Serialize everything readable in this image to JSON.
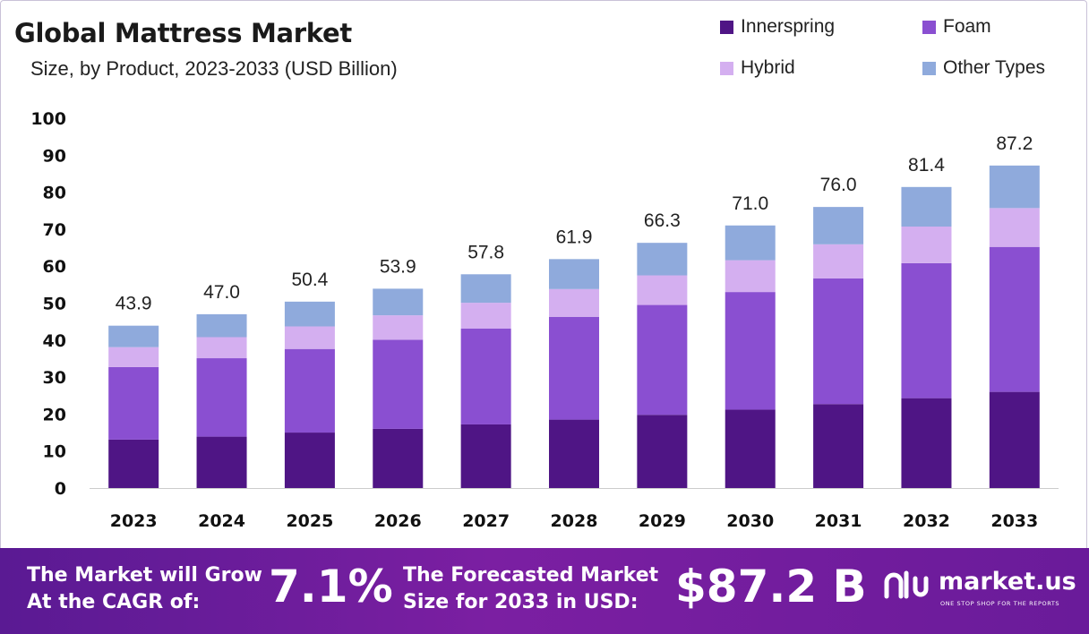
{
  "title": "Global Mattress Market",
  "subtitle": "Size, by Product, 2023-2033 (USD Billion)",
  "colors": {
    "innerspring": "#4f1585",
    "foam": "#8a4fd1",
    "hybrid": "#d4aff0",
    "other": "#8faadc",
    "footer_start": "#5a1a93",
    "footer_end": "#7b1fa2"
  },
  "legend": [
    {
      "label": "Innerspring",
      "color": "#4f1585"
    },
    {
      "label": "Foam",
      "color": "#8a4fd1"
    },
    {
      "label": "Hybrid",
      "color": "#d4aff0"
    },
    {
      "label": "Other Types",
      "color": "#8faadc"
    }
  ],
  "chart_data": {
    "type": "bar",
    "stacked": true,
    "categories": [
      "2023",
      "2024",
      "2025",
      "2026",
      "2027",
      "2028",
      "2029",
      "2030",
      "2031",
      "2032",
      "2033"
    ],
    "series": [
      {
        "name": "Innerspring",
        "values": [
          13.1,
          13.9,
          15.0,
          16.0,
          17.2,
          18.5,
          19.8,
          21.2,
          22.7,
          24.3,
          26.0
        ]
      },
      {
        "name": "Foam",
        "values": [
          19.6,
          21.2,
          22.6,
          24.1,
          25.9,
          27.8,
          29.7,
          31.8,
          34.0,
          36.5,
          39.2
        ]
      },
      {
        "name": "Hybrid",
        "values": [
          5.4,
          5.7,
          6.1,
          6.6,
          7.0,
          7.5,
          8.0,
          8.6,
          9.2,
          9.9,
          10.5
        ]
      },
      {
        "name": "Other Types",
        "values": [
          5.8,
          6.2,
          6.7,
          7.2,
          7.7,
          8.1,
          8.8,
          9.4,
          10.1,
          10.7,
          11.5
        ]
      }
    ],
    "totals": [
      "43.9",
      "47.0",
      "50.4",
      "53.9",
      "57.8",
      "61.9",
      "66.3",
      "71.0",
      "76.0",
      "81.4",
      "87.2"
    ],
    "yticks": [
      "0",
      "10",
      "20",
      "30",
      "40",
      "50",
      "60",
      "70",
      "80",
      "90",
      "100"
    ],
    "ylim": [
      0,
      100
    ],
    "grid": false,
    "legend_position": "top-right"
  },
  "footer": {
    "cagr_label_1": "The Market will Grow",
    "cagr_label_2": "At the CAGR of:",
    "cagr_value": "7.1%",
    "forecast_label_1": "The Forecasted Market",
    "forecast_label_2": "Size for 2033 in USD:",
    "forecast_value": "$87.2 B",
    "brand_name": "market.us",
    "brand_tagline": "ONE STOP SHOP FOR THE REPORTS"
  }
}
